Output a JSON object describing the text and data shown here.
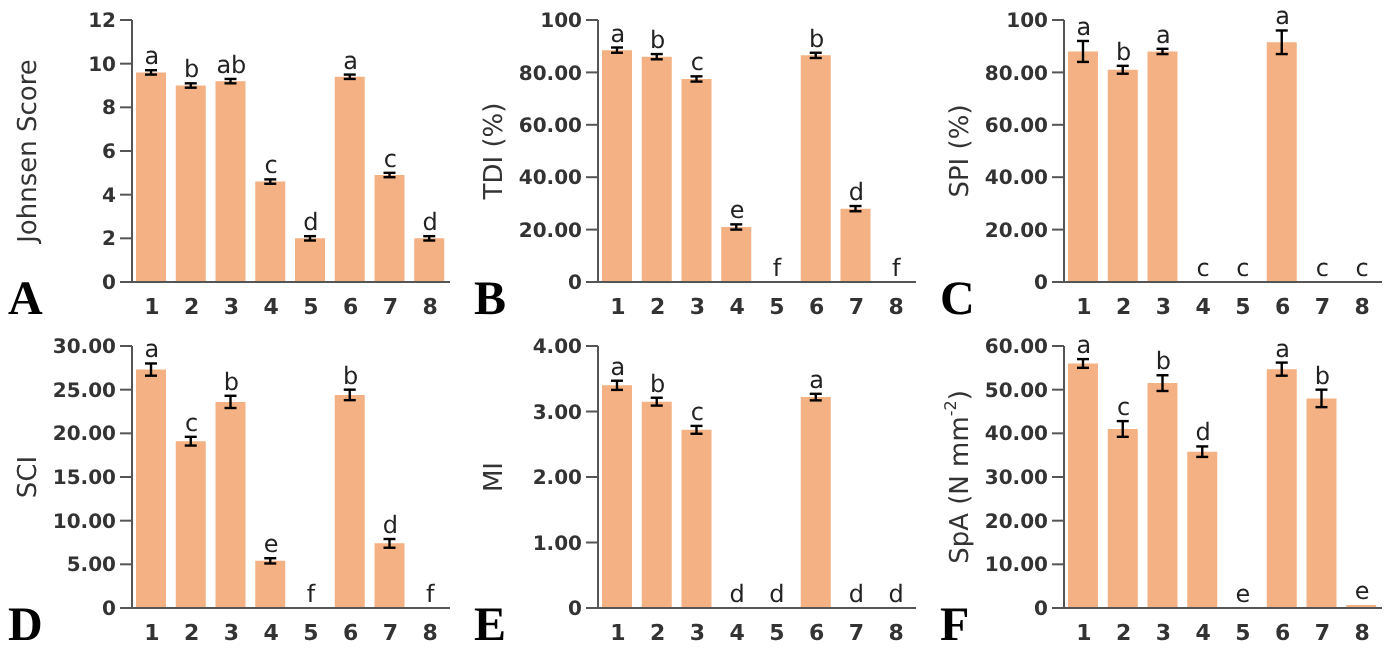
{
  "chart_data": [
    {
      "type": "bar",
      "ylabel": "Johnsen Score",
      "categories": [
        "1",
        "2",
        "3",
        "4",
        "5",
        "6",
        "7",
        "8"
      ],
      "values": [
        9.6,
        9.0,
        9.2,
        4.6,
        2.0,
        9.4,
        4.9,
        2.0
      ],
      "errors": [
        0.1,
        0.1,
        0.1,
        0.1,
        0.1,
        0.1,
        0.1,
        0.1
      ],
      "color": "#f4b183",
      "ylim": [
        0,
        12
      ],
      "yticks": [
        0,
        2,
        4,
        6,
        8,
        10,
        12
      ],
      "grid": false,
      "legend": false,
      "annotations": [
        "A",
        {
          "text": "a",
          "x": "1",
          "y": 9.7
        },
        {
          "text": "b",
          "x": "2",
          "y": 9.1
        },
        {
          "text": "ab",
          "x": "3",
          "y": 9.3
        },
        {
          "text": "c",
          "x": "4",
          "y": 4.7
        },
        {
          "text": "d",
          "x": "5",
          "y": 2.1
        },
        {
          "text": "a",
          "x": "6",
          "y": 9.5
        },
        {
          "text": "c",
          "x": "7",
          "y": 5.0
        },
        {
          "text": "d",
          "x": "8",
          "y": 2.1
        }
      ]
    },
    {
      "type": "bar",
      "ylabel": "TDI (%)",
      "categories": [
        "1",
        "2",
        "3",
        "4",
        "5",
        "6",
        "7",
        "8"
      ],
      "values": [
        88.5,
        86,
        77.5,
        21,
        0,
        86.5,
        28,
        0
      ],
      "errors": [
        1,
        1,
        1,
        1,
        null,
        1,
        1,
        null
      ],
      "color": "#f4b183",
      "ylim": [
        0,
        100
      ],
      "yticks": [
        0,
        {
          "value": 20,
          "label": "20.00"
        },
        {
          "value": 40,
          "label": "40.00"
        },
        {
          "value": 60,
          "label": "60.00"
        },
        {
          "value": 80,
          "label": "80.00"
        },
        100
      ],
      "grid": false,
      "legend": false,
      "annotations": [
        "B",
        {
          "text": "a",
          "x": "1",
          "y": 89.5
        },
        {
          "text": "b",
          "x": "2",
          "y": 87
        },
        {
          "text": "c",
          "x": "3",
          "y": 78.5
        },
        {
          "text": "e",
          "x": "4",
          "y": 22
        },
        {
          "text": "f",
          "x": "5",
          "y": 0
        },
        {
          "text": "b",
          "x": "6",
          "y": 87.5
        },
        {
          "text": "d",
          "x": "7",
          "y": 29
        },
        {
          "text": "f",
          "x": "8",
          "y": 0
        }
      ]
    },
    {
      "type": "bar",
      "ylabel": "SPI (%)",
      "categories": [
        "1",
        "2",
        "3",
        "4",
        "5",
        "6",
        "7",
        "8"
      ],
      "values": [
        88,
        81,
        88,
        0,
        0,
        91.5,
        0,
        0
      ],
      "errors": [
        4,
        1.5,
        1,
        null,
        null,
        4.5,
        null,
        null
      ],
      "color": "#f4b183",
      "ylim": [
        0,
        100
      ],
      "yticks": [
        0,
        {
          "value": 20,
          "label": "20.00"
        },
        {
          "value": 40,
          "label": "40.00"
        },
        {
          "value": 60,
          "label": "60.00"
        },
        {
          "value": 80,
          "label": "80.00"
        },
        100
      ],
      "grid": false,
      "legend": false,
      "annotations": [
        "C",
        {
          "text": "a",
          "x": "1",
          "y": 92
        },
        {
          "text": "b",
          "x": "2",
          "y": 82.5
        },
        {
          "text": "a",
          "x": "3",
          "y": 89
        },
        {
          "text": "c",
          "x": "4",
          "y": 0
        },
        {
          "text": "c",
          "x": "5",
          "y": 0
        },
        {
          "text": "a",
          "x": "6",
          "y": 96
        },
        {
          "text": "c",
          "x": "7",
          "y": 0
        },
        {
          "text": "c",
          "x": "8",
          "y": 0
        }
      ]
    },
    {
      "type": "bar",
      "ylabel": "SCI",
      "categories": [
        "1",
        "2",
        "3",
        "4",
        "5",
        "6",
        "7",
        "8"
      ],
      "values": [
        27.3,
        19.1,
        23.6,
        5.4,
        0,
        24.4,
        7.4,
        0
      ],
      "errors": [
        0.7,
        0.5,
        0.7,
        0.3,
        null,
        0.6,
        0.5,
        null
      ],
      "color": "#f4b183",
      "ylim": [
        0,
        30
      ],
      "yticks": [
        0,
        {
          "value": 5,
          "label": "5.00"
        },
        {
          "value": 10,
          "label": "10.00"
        },
        {
          "value": 15,
          "label": "15.00"
        },
        {
          "value": 20,
          "label": "20.00"
        },
        {
          "value": 25,
          "label": "25.00"
        },
        {
          "value": 30,
          "label": "30.00"
        }
      ],
      "grid": false,
      "legend": false,
      "annotations": [
        "D",
        {
          "text": "a",
          "x": "1",
          "y": 28
        },
        {
          "text": "c",
          "x": "2",
          "y": 19.6
        },
        {
          "text": "b",
          "x": "3",
          "y": 24.3
        },
        {
          "text": "e",
          "x": "4",
          "y": 5.7
        },
        {
          "text": "f",
          "x": "5",
          "y": 0
        },
        {
          "text": "b",
          "x": "6",
          "y": 25
        },
        {
          "text": "d",
          "x": "7",
          "y": 7.9
        },
        {
          "text": "f",
          "x": "8",
          "y": 0
        }
      ]
    },
    {
      "type": "bar",
      "ylabel": "MI",
      "categories": [
        "1",
        "2",
        "3",
        "4",
        "5",
        "6",
        "7",
        "8"
      ],
      "values": [
        3.4,
        3.15,
        2.72,
        0,
        0,
        3.22,
        0,
        0
      ],
      "errors": [
        0.07,
        0.06,
        0.06,
        null,
        null,
        0.05,
        null,
        null
      ],
      "color": "#f4b183",
      "ylim": [
        0,
        4
      ],
      "yticks": [
        0,
        {
          "value": 1,
          "label": "1.00"
        },
        {
          "value": 2,
          "label": "2.00"
        },
        {
          "value": 3,
          "label": "3.00"
        },
        {
          "value": 4,
          "label": "4.00"
        }
      ],
      "grid": false,
      "legend": false,
      "annotations": [
        "E",
        {
          "text": "a",
          "x": "1",
          "y": 3.47
        },
        {
          "text": "b",
          "x": "2",
          "y": 3.21
        },
        {
          "text": "c",
          "x": "3",
          "y": 2.78
        },
        {
          "text": "d",
          "x": "4",
          "y": 0
        },
        {
          "text": "d",
          "x": "5",
          "y": 0
        },
        {
          "text": "a",
          "x": "6",
          "y": 3.27
        },
        {
          "text": "d",
          "x": "7",
          "y": 0
        },
        {
          "text": "d",
          "x": "8",
          "y": 0
        }
      ]
    },
    {
      "type": "bar",
      "ylabel": "SpA (N mm$^{-2}$)",
      "categories": [
        "1",
        "2",
        "3",
        "4",
        "5",
        "6",
        "7",
        "8"
      ],
      "values": [
        56,
        41,
        51.5,
        35.8,
        0,
        54.7,
        48,
        0.7
      ],
      "errors": [
        1,
        1.8,
        1.8,
        1.2,
        null,
        1.5,
        2,
        null
      ],
      "color": "#f4b183",
      "ylim": [
        0,
        60
      ],
      "yticks": [
        0,
        {
          "value": 10,
          "label": "10.00"
        },
        {
          "value": 20,
          "label": "20.00"
        },
        {
          "value": 30,
          "label": "30.00"
        },
        {
          "value": 40,
          "label": "40.00"
        },
        {
          "value": 50,
          "label": "50.00"
        },
        {
          "value": 60,
          "label": "60.00"
        }
      ],
      "grid": false,
      "legend": false,
      "annotations": [
        "F",
        {
          "text": "a",
          "x": "1",
          "y": 57
        },
        {
          "text": "c",
          "x": "2",
          "y": 42.8
        },
        {
          "text": "b",
          "x": "3",
          "y": 53.3
        },
        {
          "text": "d",
          "x": "4",
          "y": 37
        },
        {
          "text": "e",
          "x": "5",
          "y": 0
        },
        {
          "text": "a",
          "x": "6",
          "y": 56.2
        },
        {
          "text": "b",
          "x": "7",
          "y": 50
        },
        {
          "text": "e",
          "x": "8",
          "y": 0.7
        }
      ]
    }
  ]
}
